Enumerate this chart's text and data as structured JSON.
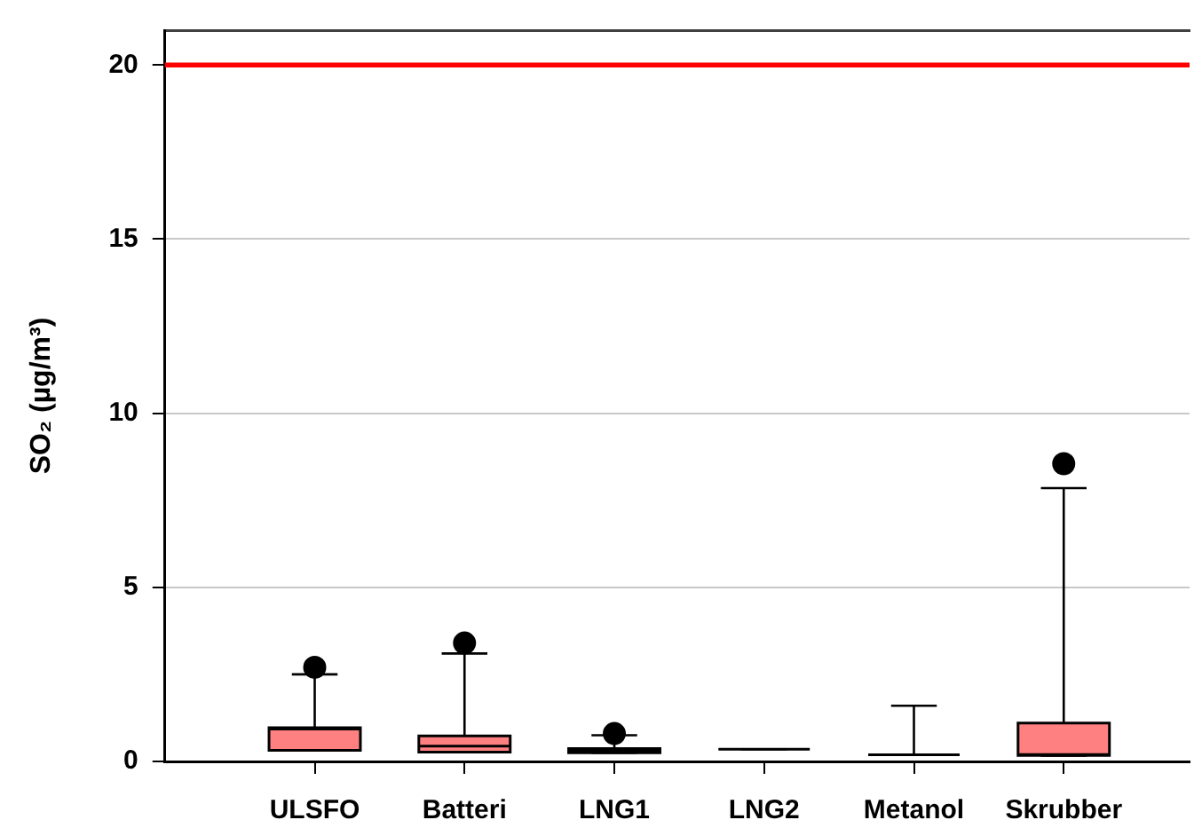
{
  "chart_data": {
    "type": "box",
    "ylabel": "SO₂ (µg/m³)",
    "categories": [
      "ULSFO",
      "Batteri",
      "LNG1",
      "LNG2",
      "Metanol",
      "Skrubber"
    ],
    "boxes": [
      {
        "low": 0.32,
        "q1": 0.32,
        "median": 0.93,
        "q3": 0.97,
        "high": 2.5,
        "outliers": [
          2.7
        ]
      },
      {
        "low": 0.27,
        "q1": 0.27,
        "median": 0.44,
        "q3": 0.73,
        "high": 3.1,
        "outliers": [
          3.4
        ]
      },
      {
        "low": 0.25,
        "q1": 0.25,
        "median": 0.32,
        "q3": 0.37,
        "high": 0.75,
        "outliers": [
          0.8
        ]
      },
      {
        "low": 0.35,
        "q1": 0.35,
        "median": 0.35,
        "q3": 0.35,
        "high": 0.35
      },
      {
        "low": 0.19,
        "q1": 0.19,
        "median": 0.19,
        "q3": 0.19,
        "high": 1.6
      },
      {
        "low": 0.17,
        "q1": 0.17,
        "median": 0.2,
        "q3": 1.1,
        "high": 7.85,
        "outliers": [
          8.55
        ]
      }
    ],
    "colors": [
      "#ff8080",
      "#ff8080",
      "#ff8080",
      "#000000",
      "#000000",
      "#ff8080"
    ],
    "ylim": [
      0,
      21
    ],
    "yticks": [
      0,
      5,
      10,
      15,
      20
    ],
    "grid": "y",
    "ref_lines": [
      {
        "axis": "y",
        "value": 20,
        "color": "#ff0000"
      }
    ]
  }
}
